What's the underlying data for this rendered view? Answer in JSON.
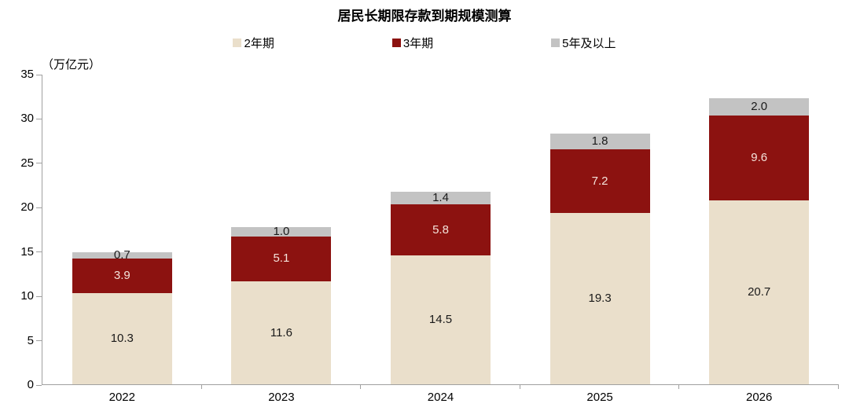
{
  "chart_data": {
    "type": "bar",
    "variant": "stacked",
    "title": "居民长期限存款到期规模测算",
    "unit_label": "（万亿元）",
    "categories": [
      "2022",
      "2023",
      "2024",
      "2025",
      "2026"
    ],
    "series": [
      {
        "name": "2年期",
        "color": "#EADFCB",
        "label_color": "#1a1a1a",
        "values": [
          10.3,
          11.6,
          14.5,
          19.3,
          20.7
        ]
      },
      {
        "name": "3年期",
        "color": "#8C1210",
        "label_color": "#F4E3DB",
        "values": [
          3.9,
          5.1,
          5.8,
          7.2,
          9.6
        ]
      },
      {
        "name": "5年及以上",
        "color": "#C3C3C3",
        "label_color": "#1a1a1a",
        "values": [
          0.7,
          1.0,
          1.4,
          1.8,
          2.0
        ]
      }
    ],
    "ylim": [
      0,
      35
    ],
    "yticks": [
      0,
      5,
      10,
      15,
      20,
      25,
      30,
      35
    ],
    "value_decimals": 1,
    "legend_position": "top",
    "grid": false,
    "axis_color": "#a0a0a0",
    "text_color": "#000000"
  }
}
